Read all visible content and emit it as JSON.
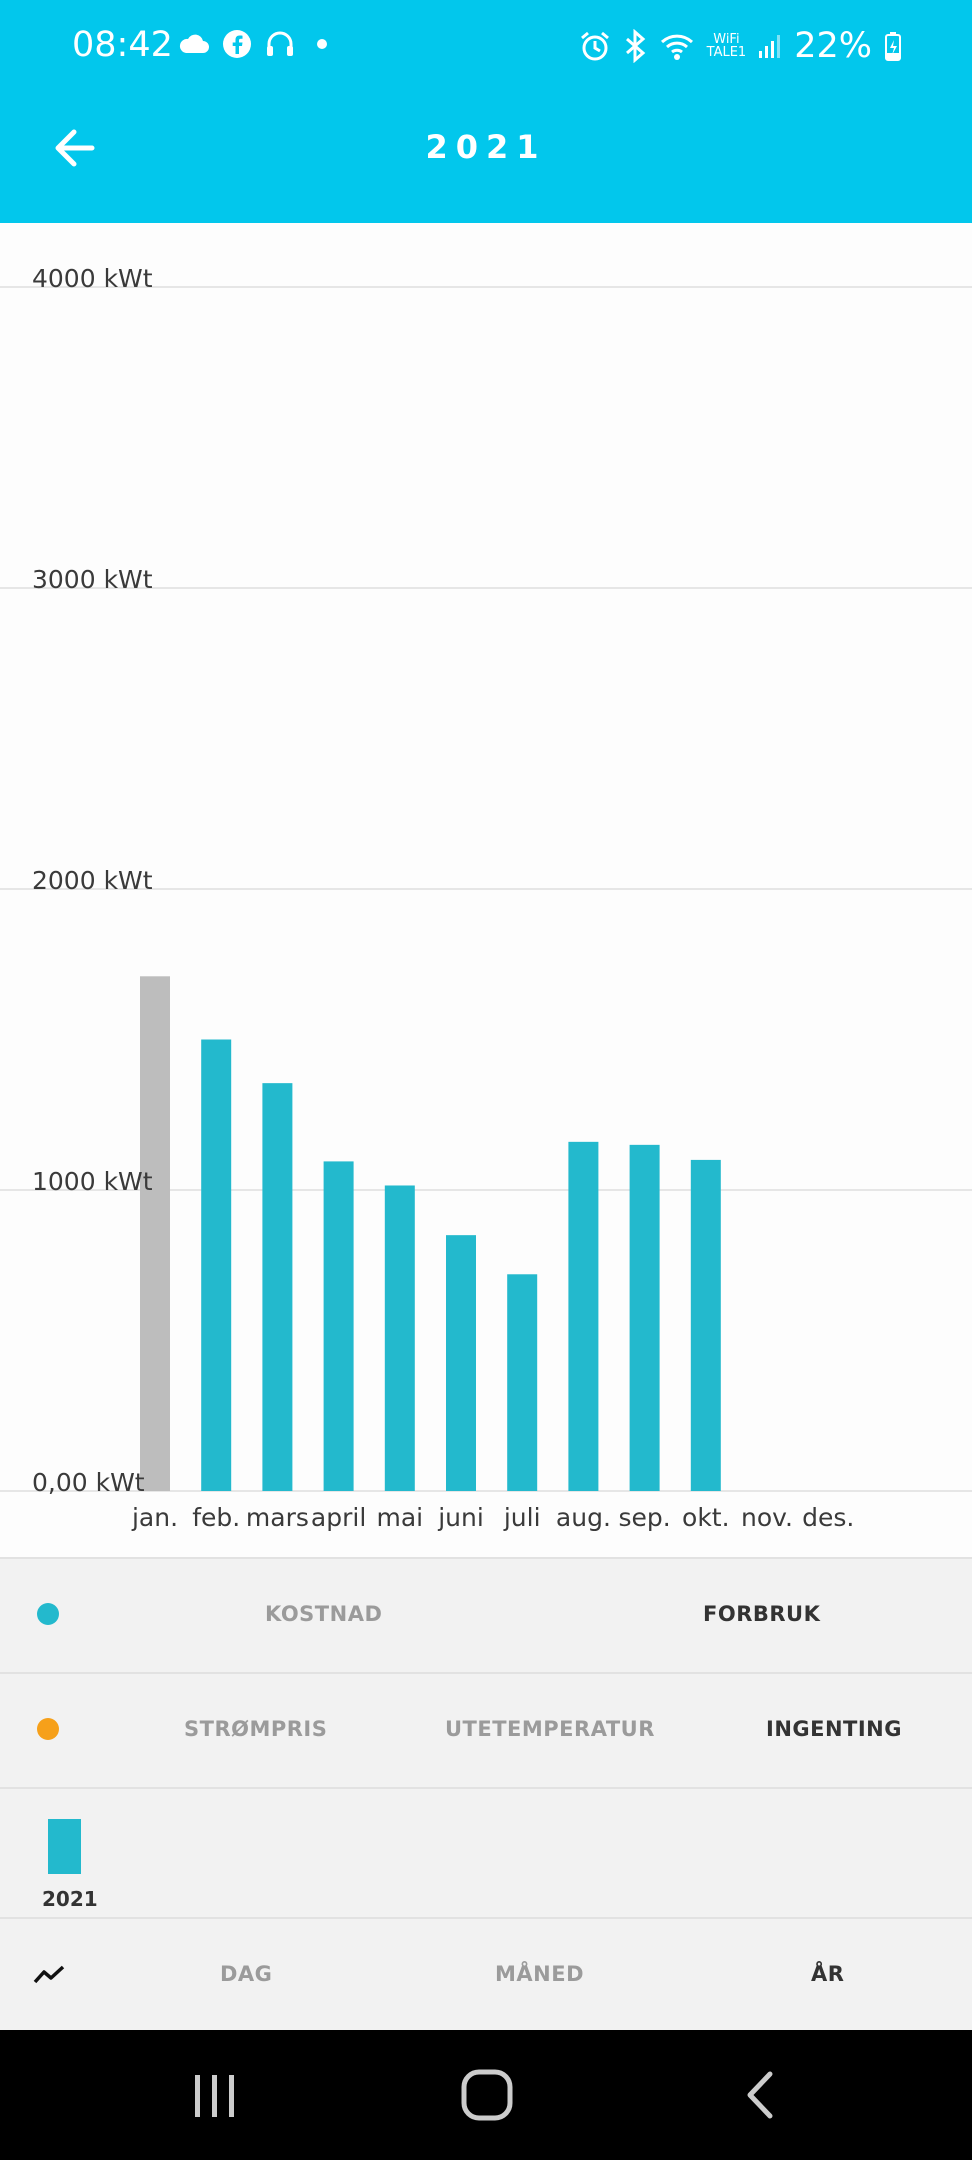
{
  "status_bar": {
    "time": "08:42",
    "wifi_label_top": "WiFi",
    "wifi_label_bottom": "TALE1",
    "battery": "22%",
    "icons": [
      "cloud-icon",
      "facebook-icon",
      "headset-icon",
      "dot-icon",
      "alarm-icon",
      "bluetooth-icon",
      "wifi-icon",
      "signal-icon",
      "battery-charging-icon"
    ]
  },
  "header": {
    "title": "2021",
    "back_icon": "arrow-left-icon",
    "background": "#02c7ec"
  },
  "chart_data": {
    "type": "bar",
    "categories": [
      "jan.",
      "feb.",
      "mars",
      "april",
      "mai",
      "juni",
      "juli",
      "aug.",
      "sep.",
      "okt.",
      "nov.",
      "des."
    ],
    "y_tick_labels": [
      "4000 kWt",
      "3000 kWt",
      "2000 kWt",
      "1000 kWt",
      "0,00 kWt"
    ],
    "y_ticks": [
      4000,
      3000,
      2000,
      1000,
      0
    ],
    "ylim": [
      0,
      4000
    ],
    "series": [
      {
        "name": "2021",
        "values": [
          1710,
          1500,
          1355,
          1095,
          1015,
          850,
          720,
          1160,
          1150,
          1100,
          null,
          null
        ],
        "highlight_index": 0
      }
    ],
    "colors": {
      "bar": "#23b9cd",
      "highlight": "#bdbdbd",
      "grid": "#e6e6e6"
    },
    "grid": true
  },
  "controls": {
    "row1": {
      "dot_color": "#23b9cd",
      "options": [
        "KOSTNAD",
        "FORBRUK"
      ],
      "selected": "FORBRUK"
    },
    "row2": {
      "dot_color": "#f6a01a",
      "options": [
        "STRØMPRIS",
        "UTETEMPERATUR",
        "INGENTING"
      ],
      "selected": "INGENTING"
    },
    "legend": {
      "label": "2021",
      "color": "#23b9cd"
    },
    "period": {
      "icon": "trend-line-icon",
      "options": [
        "DAG",
        "MÅNED",
        "ÅR"
      ],
      "selected": "ÅR"
    }
  },
  "nav_bar": {
    "icons": [
      "recent-apps-icon",
      "home-icon",
      "back-icon"
    ]
  }
}
